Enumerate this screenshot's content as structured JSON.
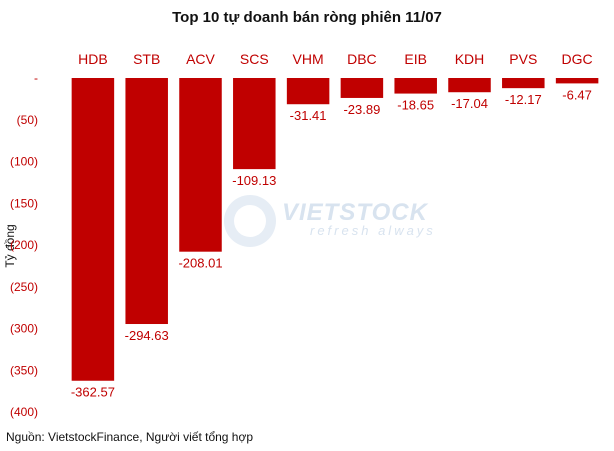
{
  "chart_data": {
    "type": "bar",
    "title": "Top 10 tự doanh bán ròng phiên 11/07",
    "ylabel": "Tỷ đồng",
    "categories": [
      "HDB",
      "STB",
      "ACV",
      "SCS",
      "VHM",
      "DBC",
      "EIB",
      "KDH",
      "PVS",
      "DGC"
    ],
    "values": [
      -362.57,
      -294.63,
      -208.01,
      -109.13,
      -31.41,
      -23.89,
      -18.65,
      -17.04,
      -12.17,
      -6.47
    ],
    "value_labels": [
      "-362.57",
      "-294.63",
      "-208.01",
      "-109.13",
      "-31.41",
      "-23.89",
      "-18.65",
      "-17.04",
      "-12.17",
      "-6.47"
    ],
    "ylim": [
      -400,
      0
    ],
    "yticks": [
      0,
      -50,
      -100,
      -150,
      -200,
      -250,
      -300,
      -350,
      -400
    ],
    "ytick_labels": [
      "-",
      "(50)",
      "(100)",
      "(150)",
      "(200)",
      "(250)",
      "(300)",
      "(350)",
      "(400)"
    ],
    "grid": false,
    "legend": "none",
    "bar_color": "#c00000"
  },
  "watermark": {
    "brand": "VIETSTOCK",
    "tagline": "refresh always"
  },
  "source": "Nguồn: VietstockFinance, Người viết tổng hợp"
}
